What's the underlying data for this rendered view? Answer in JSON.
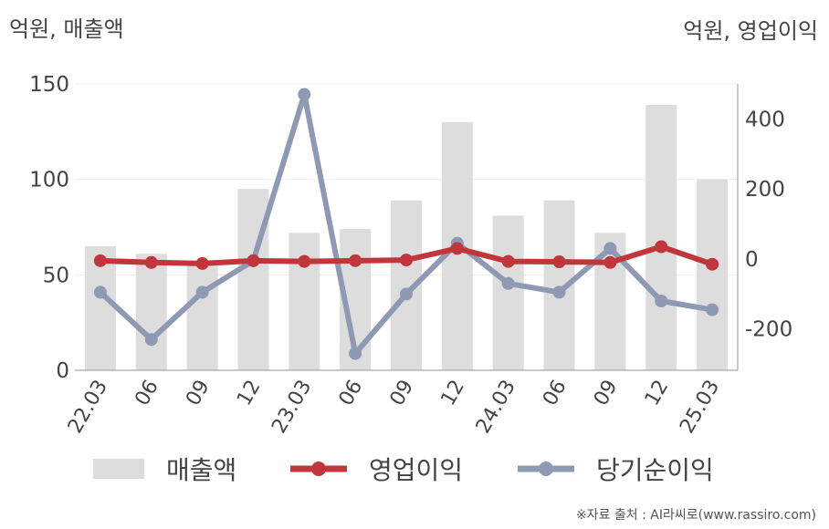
{
  "header": {
    "left_unit": "억원, 매출액",
    "right_unit": "억원, 영업이익"
  },
  "source": "※자료 출처 : AI라씨로(www.rassiro.com)",
  "colors": {
    "bar": "#dddddd",
    "operating_profit": "#c1363a",
    "net_income": "#8e9ab3",
    "axis": "#aaaaaa",
    "grid": "#eeeeee"
  },
  "chart_data": {
    "type": "bar",
    "categories": [
      "22.03",
      "06",
      "09",
      "12",
      "23.03",
      "06",
      "09",
      "12",
      "24.03",
      "06",
      "09",
      "12",
      "25.03"
    ],
    "series": [
      {
        "name": "매출액",
        "type": "bar",
        "axis": "left",
        "values": [
          65,
          61,
          57,
          95,
          72,
          74,
          89,
          130,
          81,
          89,
          72,
          139,
          100
        ]
      },
      {
        "name": "영업이익",
        "type": "line",
        "axis": "right",
        "values": [
          -5,
          -10,
          -13,
          -5,
          -7,
          -5,
          -3,
          30,
          -7,
          -8,
          -10,
          35,
          -15
        ]
      },
      {
        "name": "당기순이익",
        "type": "line",
        "axis": "right",
        "values": [
          -95,
          -230,
          -95,
          -5,
          470,
          -270,
          -100,
          45,
          -70,
          -95,
          30,
          -120,
          -145
        ]
      }
    ],
    "y_left": {
      "ylim": [
        0,
        150
      ],
      "ticks": [
        "0",
        "50",
        "100",
        "150"
      ]
    },
    "y_right": {
      "ylim": [
        -318,
        500
      ],
      "ticks": [
        "-200",
        "0",
        "200",
        "400"
      ]
    },
    "grid": true,
    "legend": {
      "position": "bottom",
      "items": [
        "매출액",
        "영업이익",
        "당기순이익"
      ]
    }
  }
}
